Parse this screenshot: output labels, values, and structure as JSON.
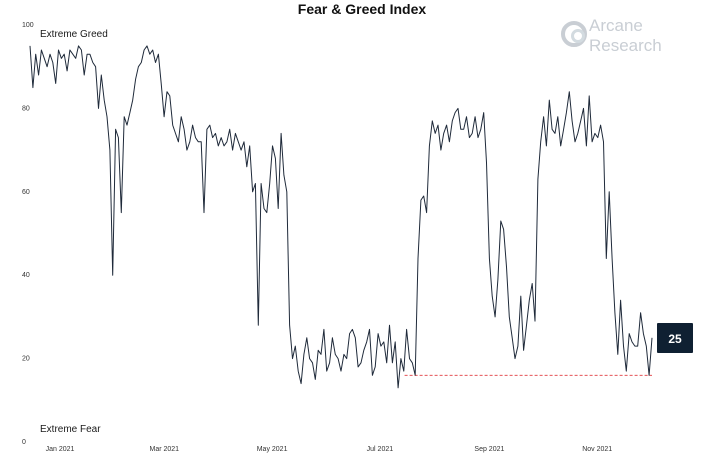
{
  "chart_data": {
    "type": "line",
    "title": "Fear & Greed Index",
    "ylim": [
      0,
      100
    ],
    "y_ticks": [
      "0",
      "20",
      "40",
      "60",
      "80",
      "100"
    ],
    "x_ticks": [
      "Jan 2021",
      "Mar 2021",
      "May 2021",
      "Jul 2021",
      "Sep 2021",
      "Nov 2021"
    ],
    "zone_labels": {
      "top": "Extreme Greed",
      "bottom": "Extreme Fear"
    },
    "latest_value": 25,
    "reference_level": 16,
    "line_color": "#1f2a3a",
    "reference_color": "#e0393e",
    "series": [
      {
        "x_start": "2020-12-15",
        "x_end": "2021-12-02",
        "values": [
          95,
          85,
          93,
          88,
          94,
          92,
          90,
          93,
          91,
          86,
          94,
          92,
          93,
          89,
          94,
          93,
          92,
          95,
          94,
          88,
          93,
          93,
          91,
          90,
          80,
          88,
          82,
          78,
          70,
          40,
          75,
          73,
          55,
          78,
          76,
          79,
          82,
          87,
          90,
          91,
          94,
          95,
          93,
          94,
          91,
          93,
          86,
          78,
          84,
          83,
          76,
          74,
          72,
          78,
          75,
          70,
          72,
          76,
          73,
          72,
          72,
          55,
          75,
          76,
          73,
          74,
          71,
          73,
          71,
          72,
          75,
          70,
          74,
          72,
          70,
          72,
          66,
          71,
          60,
          62,
          28,
          62,
          56,
          55,
          62,
          71,
          68,
          56,
          74,
          64,
          60,
          28,
          20,
          23,
          17,
          14,
          21,
          25,
          20,
          19,
          15,
          22,
          21,
          27,
          17,
          19,
          25,
          21,
          20,
          17,
          21,
          20,
          26,
          27,
          25,
          18,
          19,
          22,
          24,
          27,
          16,
          18,
          26,
          23,
          24,
          19,
          28,
          19,
          24,
          13,
          20,
          17,
          27,
          20,
          19,
          16,
          44,
          58,
          59,
          55,
          71,
          77,
          74,
          76,
          70,
          74,
          76,
          72,
          77,
          79,
          80,
          75,
          75,
          78,
          73,
          74,
          78,
          73,
          75,
          79,
          67,
          44,
          35,
          30,
          39,
          53,
          51,
          42,
          30,
          25,
          20,
          23,
          35,
          22,
          28,
          34,
          38,
          29,
          63,
          72,
          78,
          71,
          82,
          75,
          74,
          78,
          71,
          75,
          79,
          84,
          77,
          72,
          74,
          77,
          80,
          71,
          83,
          72,
          74,
          73,
          76,
          72,
          44,
          60,
          44,
          31,
          21,
          34,
          23,
          17,
          26,
          24,
          23,
          23,
          31,
          26,
          23,
          16,
          25
        ]
      }
    ]
  },
  "watermark": {
    "line1": "Arcane",
    "line2": "Research"
  }
}
